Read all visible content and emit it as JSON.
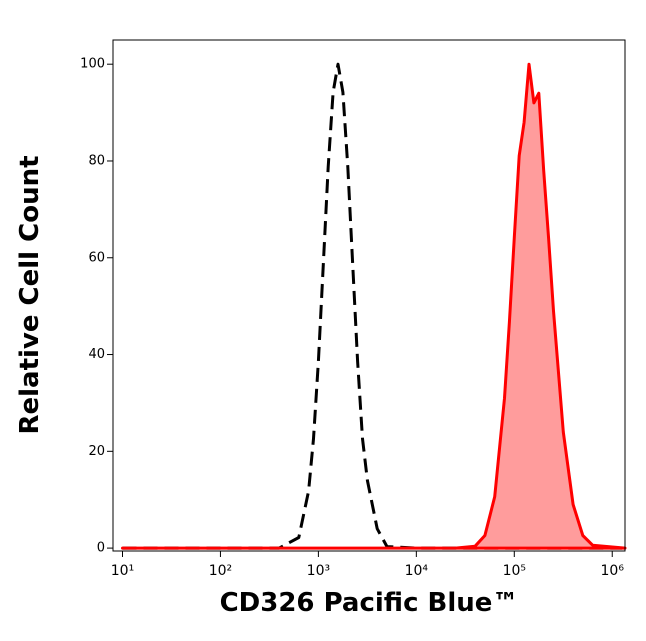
{
  "chart_data": {
    "type": "histogram-overlay",
    "x_label": "CD326 Pacific Blue™",
    "y_label": "Relative Cell Count",
    "xscale": "log",
    "xlim": [
      8,
      1350000
    ],
    "ylim": [
      -0.6,
      105
    ],
    "xticks": [
      {
        "value": 10,
        "label": "10¹"
      },
      {
        "value": 100,
        "label": "10²"
      },
      {
        "value": 1000,
        "label": "10³"
      },
      {
        "value": 10000,
        "label": "10⁴"
      },
      {
        "value": 100000,
        "label": "10⁵"
      },
      {
        "value": 1000000,
        "label": "10⁶"
      }
    ],
    "yticks": [
      0,
      20,
      40,
      60,
      80,
      100
    ],
    "series": [
      {
        "style": "dashed",
        "color": "#000000",
        "x": [
          10,
          398,
          631,
          794,
          891,
          1000,
          1122,
          1259,
          1413,
          1585,
          1778,
          1995,
          2239,
          2512,
          2818,
          3162,
          3981,
          5012,
          10000,
          1258925
        ],
        "values": [
          0,
          0,
          2.2,
          11.8,
          22.6,
          38.6,
          58.6,
          78.8,
          94.2,
          100,
          94.2,
          78.8,
          58.6,
          38.6,
          22.6,
          14,
          4,
          0.3,
          0,
          0
        ]
      },
      {
        "style": "filled",
        "color": "#ff0000",
        "fill": "#ff9c9c",
        "x": [
          10,
          15849,
          25119,
          39811,
          50119,
          63096,
          79433,
          89125,
          100000,
          112202,
          125893,
          141254,
          158489,
          177828,
          199526,
          223872,
          251189,
          316228,
          398107,
          501187,
          630957,
          1348963
        ],
        "values": [
          0,
          0,
          0,
          0.4,
          2.6,
          10.6,
          31,
          46.7,
          64.2,
          81.1,
          88,
          100,
          92,
          94,
          78,
          64,
          49,
          24,
          9,
          2.6,
          0.6,
          0
        ]
      }
    ]
  }
}
